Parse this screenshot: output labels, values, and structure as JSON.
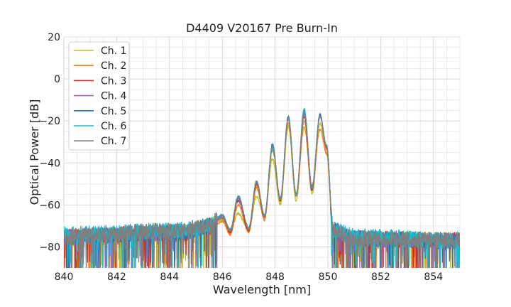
{
  "chart_data": {
    "type": "line",
    "title": "D4409 V20167 Pre Burn-In",
    "xlabel": "Wavelength [nm]",
    "ylabel": "Optical Power [dB]",
    "xlim": [
      840,
      855
    ],
    "ylim": [
      -90,
      20
    ],
    "x_ticks": [
      840,
      842,
      844,
      846,
      848,
      850,
      852,
      854
    ],
    "y_ticks": [
      20,
      0,
      -20,
      -40,
      -60,
      -80
    ],
    "x_tick_labels": [
      "840",
      "842",
      "844",
      "846",
      "848",
      "850",
      "852",
      "854"
    ],
    "y_tick_labels": [
      "20",
      "0",
      "−20",
      "−40",
      "−60",
      "−80"
    ],
    "x_minor_step": 0.5,
    "y_minor_step": 5,
    "grid": true,
    "legend_position": "top-left",
    "series": [
      {
        "name": "Ch. 1",
        "color": "#bcbd22",
        "x": [
          840,
          844.5,
          845.5,
          846.0,
          846.3,
          846.6,
          847.0,
          847.3,
          847.6,
          847.9,
          848.2,
          848.5,
          848.8,
          849.1,
          849.4,
          849.7,
          849.95,
          850.2,
          851.0,
          855
        ],
        "y": [
          -75,
          -73,
          -70,
          -67,
          -73,
          -64,
          -72,
          -56,
          -66,
          -38,
          -60,
          -23,
          -58,
          -20,
          -55,
          -21,
          -36,
          -73,
          -76,
          -77
        ]
      },
      {
        "name": "Ch. 2",
        "color": "#ff7f0e",
        "x": [
          840,
          844.5,
          845.5,
          846.0,
          846.3,
          846.6,
          847.0,
          847.3,
          847.6,
          847.9,
          848.2,
          848.5,
          848.8,
          849.1,
          849.4,
          849.7,
          849.95,
          850.2,
          851.0,
          855
        ],
        "y": [
          -76,
          -74,
          -71,
          -68,
          -74,
          -60,
          -73,
          -52,
          -67,
          -34,
          -58,
          -21,
          -56,
          -23,
          -53,
          -24,
          -35,
          -74,
          -77,
          -78
        ]
      },
      {
        "name": "Ch. 3",
        "color": "#d62728",
        "x": [
          840,
          844.5,
          845.5,
          846.0,
          846.3,
          846.6,
          847.0,
          847.3,
          847.6,
          847.9,
          848.2,
          848.5,
          848.8,
          849.1,
          849.4,
          849.7,
          849.95,
          850.2,
          851.0,
          855
        ],
        "y": [
          -75,
          -73,
          -70,
          -66,
          -73,
          -58,
          -72,
          -50,
          -66,
          -32,
          -58,
          -19,
          -55,
          -18,
          -53,
          -18,
          -33,
          -73,
          -76,
          -77
        ]
      },
      {
        "name": "Ch. 4",
        "color": "#9467bd",
        "x": [
          840,
          844.5,
          845.5,
          846.0,
          846.3,
          846.6,
          847.0,
          847.3,
          847.6,
          847.9,
          848.2,
          848.5,
          848.8,
          849.1,
          849.4,
          849.7,
          849.95,
          850.2,
          851.0,
          855
        ],
        "y": [
          -75,
          -73,
          -70,
          -66,
          -72,
          -57,
          -71,
          -49,
          -66,
          -32,
          -57,
          -18,
          -55,
          -17,
          -51,
          -17,
          -32,
          -72,
          -76,
          -77
        ]
      },
      {
        "name": "Ch. 5",
        "color": "#1f77b4",
        "x": [
          840,
          844.5,
          845.5,
          846.0,
          846.3,
          846.6,
          847.0,
          847.3,
          847.6,
          847.9,
          848.2,
          848.5,
          848.8,
          849.1,
          849.4,
          849.7,
          849.95,
          850.2,
          851.0,
          855
        ],
        "y": [
          -75,
          -73,
          -70,
          -65,
          -72,
          -56,
          -71,
          -49,
          -65,
          -31,
          -57,
          -18,
          -55,
          -15,
          -52,
          -17,
          -32,
          -72,
          -76,
          -77
        ]
      },
      {
        "name": "Ch. 6",
        "color": "#17becf",
        "x": [
          840,
          844.5,
          845.5,
          846.0,
          846.3,
          846.6,
          847.0,
          847.3,
          847.6,
          847.9,
          848.2,
          848.5,
          848.8,
          849.1,
          849.4,
          849.7,
          849.95,
          850.2,
          851.0,
          855
        ],
        "y": [
          -74,
          -72,
          -70,
          -65,
          -72,
          -56,
          -71,
          -49,
          -65,
          -33,
          -57,
          -19,
          -55,
          -14,
          -52,
          -18,
          -32,
          -72,
          -75,
          -77
        ]
      },
      {
        "name": "Ch. 7",
        "color": "#7f7f7f",
        "x": [
          840,
          844.5,
          845.5,
          846.0,
          846.3,
          846.6,
          847.0,
          847.3,
          847.6,
          847.9,
          848.2,
          848.5,
          848.8,
          849.1,
          849.4,
          849.7,
          849.95,
          850.2,
          851.0,
          855
        ],
        "y": [
          -75,
          -72,
          -70,
          -65,
          -72,
          -56,
          -71,
          -49,
          -65,
          -32,
          -57,
          -19,
          -55,
          -16,
          -52,
          -18,
          -32,
          -72,
          -76,
          -77
        ]
      }
    ]
  }
}
